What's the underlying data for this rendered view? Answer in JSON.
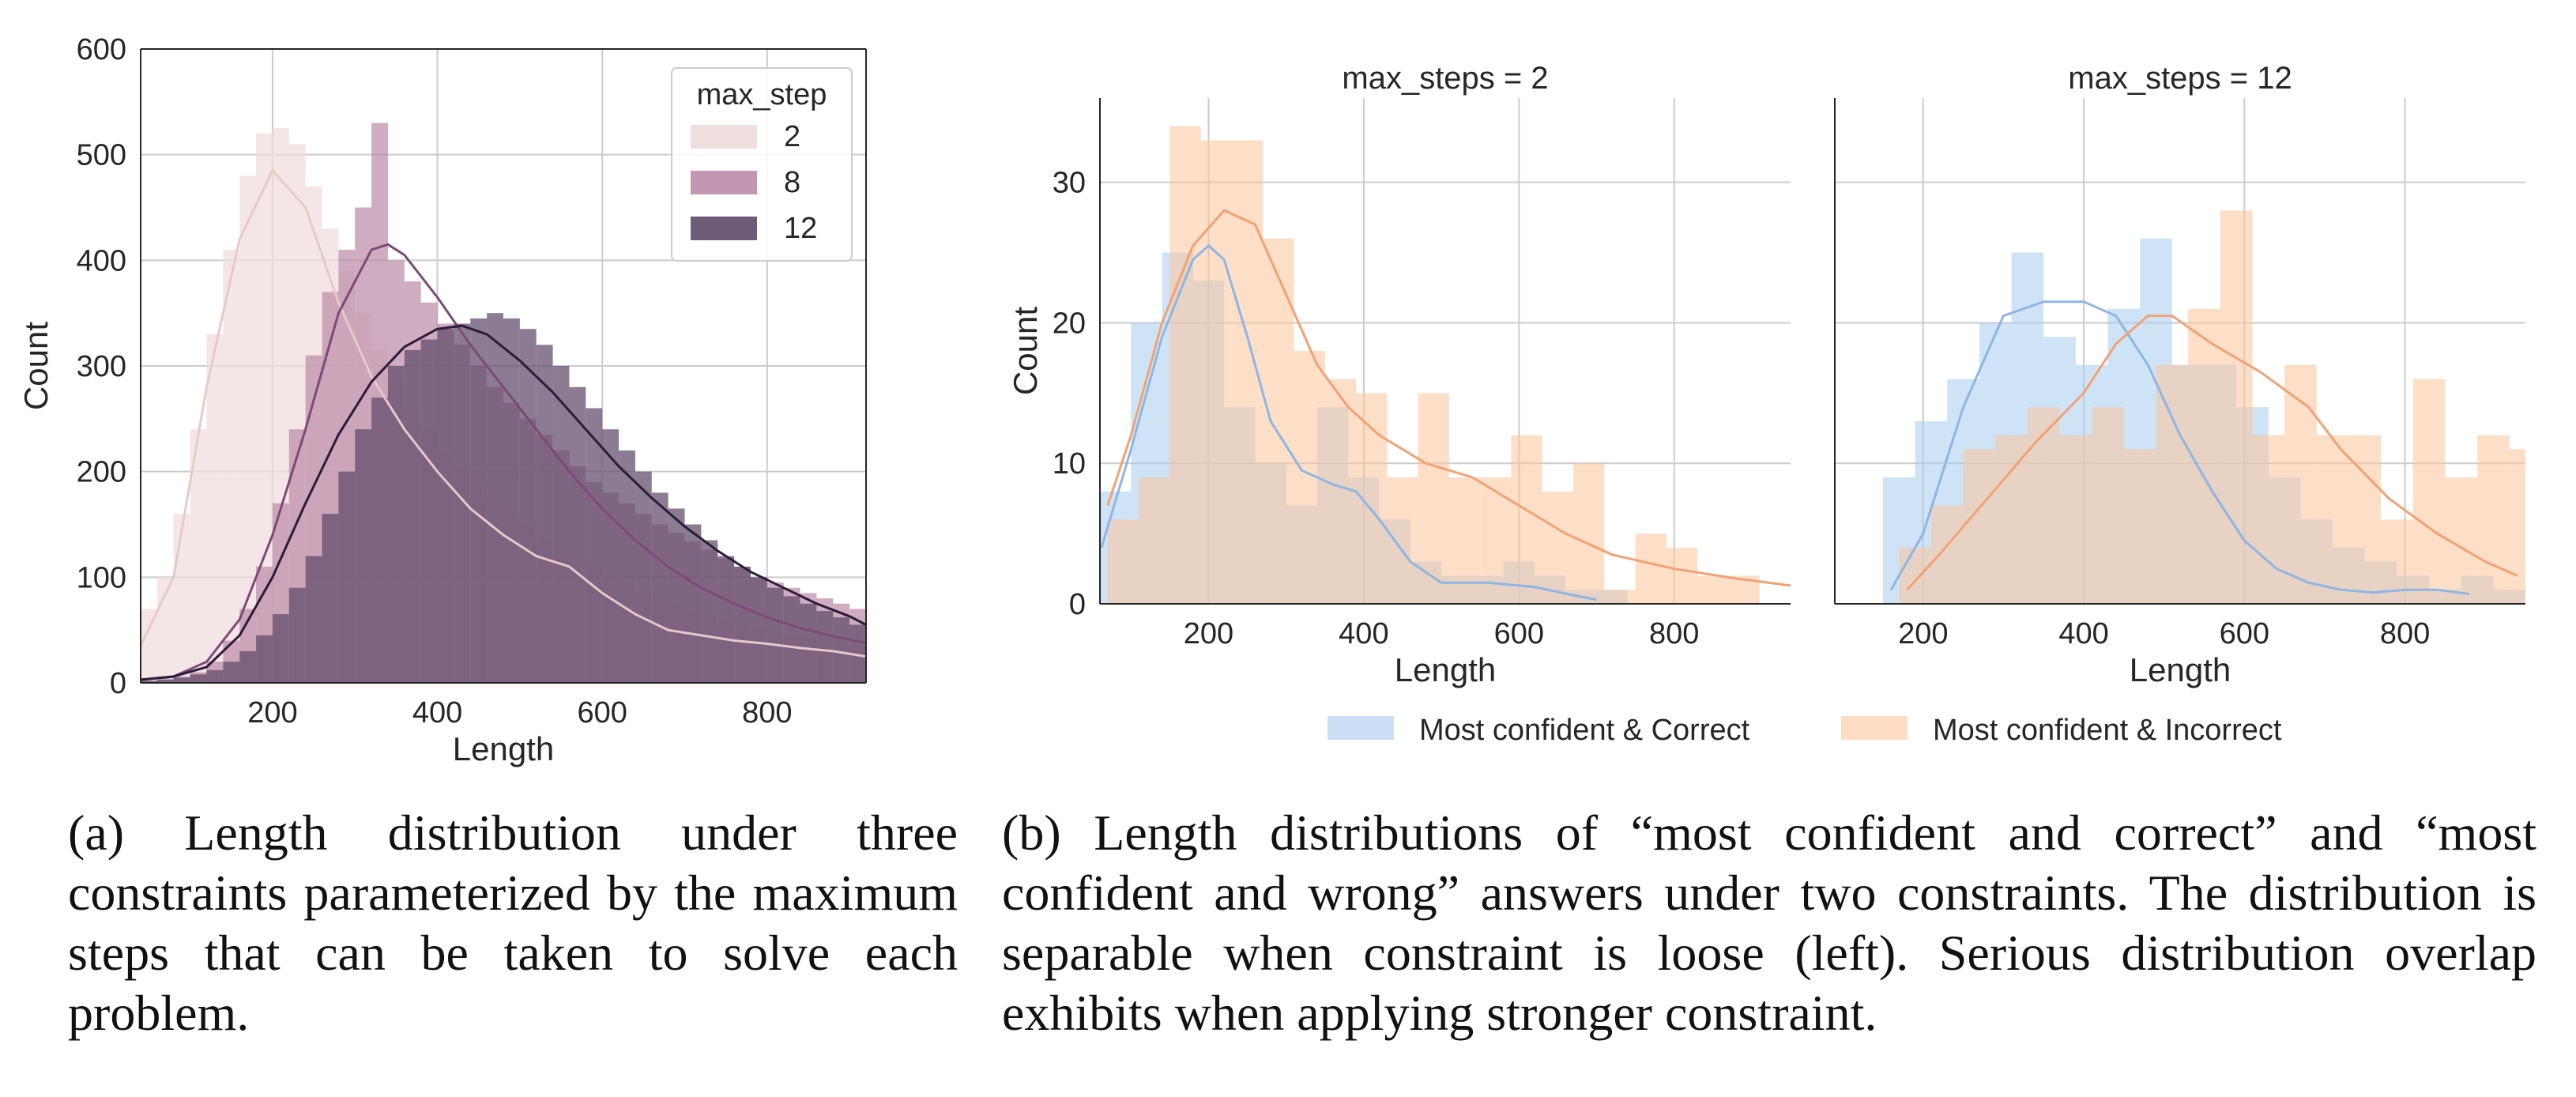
{
  "captions": {
    "a": "(a) Length distribution under three constraints parameterized by the maximum steps that can be taken to solve each problem.",
    "b": "(b) Length distributions of “most confident and correct” and “most confident and wrong” answers under two constraints. The distribution is separable when constraint is loose (left). Serious distribution overlap exhibits when applying stronger constraint."
  },
  "colors": {
    "grid": "#cccccc",
    "axis": "#262626",
    "step2": "#f0dcdc",
    "step8": "#bc8ca8",
    "step12": "#5e4a6a",
    "step2_line": "#e6c9c9",
    "step8_line": "#7d4a76",
    "step12_line": "#2b1c3a",
    "correct": "#a8ccf0",
    "incorrect": "#fcc49a",
    "correct_line": "#8db6e4",
    "incorrect_line": "#f2a272"
  },
  "chart_data": [
    {
      "type": "histogram",
      "xlabel": "Length",
      "ylabel": "Count",
      "xlim": [
        40,
        920
      ],
      "ylim": [
        0,
        600
      ],
      "xticks": [
        200,
        400,
        600,
        800
      ],
      "yticks": [
        0,
        100,
        200,
        300,
        400,
        500,
        600
      ],
      "grid": true,
      "legend": {
        "title": "max_step",
        "position": "top-right"
      },
      "bin_width": 20,
      "bin_start": 40,
      "series": [
        {
          "name": "2",
          "color_key": "step2",
          "line_key": "step2_line",
          "counts": [
            70,
            100,
            160,
            240,
            330,
            410,
            480,
            520,
            525,
            510,
            470,
            430,
            390,
            350,
            315,
            285,
            260,
            240,
            220,
            205,
            190,
            175,
            160,
            148,
            136,
            125,
            116,
            108,
            100,
            93,
            86,
            80,
            74,
            69,
            64,
            60,
            56,
            52,
            48,
            45,
            42,
            39,
            36,
            34
          ],
          "kde": [
            [
              40,
              35
            ],
            [
              80,
              100
            ],
            [
              120,
              280
            ],
            [
              160,
              420
            ],
            [
              200,
              485
            ],
            [
              240,
              450
            ],
            [
              280,
              360
            ],
            [
              320,
              290
            ],
            [
              360,
              240
            ],
            [
              400,
              200
            ],
            [
              440,
              165
            ],
            [
              480,
              140
            ],
            [
              520,
              120
            ],
            [
              560,
              110
            ],
            [
              600,
              85
            ],
            [
              640,
              65
            ],
            [
              680,
              50
            ],
            [
              720,
              45
            ],
            [
              760,
              40
            ],
            [
              800,
              37
            ],
            [
              840,
              33
            ],
            [
              880,
              30
            ],
            [
              920,
              25
            ]
          ]
        },
        {
          "name": "8",
          "color_key": "step8",
          "line_key": "step8_line",
          "counts": [
            2,
            4,
            6,
            10,
            20,
            40,
            70,
            110,
            170,
            240,
            310,
            370,
            410,
            450,
            530,
            400,
            380,
            360,
            340,
            320,
            300,
            280,
            265,
            250,
            235,
            220,
            205,
            190,
            180,
            170,
            160,
            150,
            142,
            134,
            126,
            118,
            110,
            100,
            95,
            90,
            85,
            80,
            75,
            70
          ],
          "kde": [
            [
              40,
              3
            ],
            [
              80,
              6
            ],
            [
              120,
              20
            ],
            [
              160,
              60
            ],
            [
              200,
              140
            ],
            [
              240,
              240
            ],
            [
              280,
              350
            ],
            [
              320,
              410
            ],
            [
              340,
              415
            ],
            [
              360,
              405
            ],
            [
              400,
              365
            ],
            [
              440,
              320
            ],
            [
              480,
              280
            ],
            [
              520,
              240
            ],
            [
              560,
              200
            ],
            [
              600,
              165
            ],
            [
              640,
              135
            ],
            [
              680,
              110
            ],
            [
              720,
              90
            ],
            [
              760,
              75
            ],
            [
              800,
              62
            ],
            [
              840,
              52
            ],
            [
              880,
              44
            ],
            [
              920,
              38
            ]
          ]
        },
        {
          "name": "12",
          "color_key": "step12",
          "line_key": "step12_line",
          "counts": [
            2,
            3,
            5,
            8,
            12,
            20,
            30,
            45,
            65,
            90,
            120,
            160,
            200,
            240,
            270,
            300,
            315,
            325,
            335,
            340,
            345,
            350,
            345,
            335,
            320,
            300,
            280,
            260,
            240,
            220,
            200,
            180,
            165,
            150,
            135,
            120,
            110,
            100,
            90,
            82,
            75,
            68,
            62,
            55
          ],
          "kde": [
            [
              40,
              3
            ],
            [
              80,
              6
            ],
            [
              120,
              15
            ],
            [
              160,
              45
            ],
            [
              200,
              100
            ],
            [
              240,
              170
            ],
            [
              280,
              235
            ],
            [
              320,
              285
            ],
            [
              360,
              318
            ],
            [
              400,
              335
            ],
            [
              430,
              338
            ],
            [
              460,
              330
            ],
            [
              500,
              305
            ],
            [
              540,
              275
            ],
            [
              580,
              240
            ],
            [
              620,
              205
            ],
            [
              660,
              175
            ],
            [
              700,
              148
            ],
            [
              740,
              125
            ],
            [
              780,
              105
            ],
            [
              820,
              90
            ],
            [
              860,
              75
            ],
            [
              900,
              63
            ],
            [
              920,
              55
            ]
          ]
        }
      ]
    },
    {
      "type": "histogram",
      "title": "max_steps = 2",
      "xlabel": "Length",
      "ylabel": "Count",
      "xlim": [
        60,
        950
      ],
      "ylim": [
        0,
        36
      ],
      "xticks": [
        200,
        400,
        600,
        800
      ],
      "yticks": [
        0,
        10,
        20,
        30
      ],
      "grid": true,
      "bin_width": 40,
      "series": [
        {
          "name": "Most confident & Correct",
          "color_key": "correct",
          "line_key": "correct_line",
          "bin_start": 60,
          "counts": [
            8,
            20,
            25,
            23,
            14,
            10,
            7,
            14,
            9,
            6,
            3,
            2,
            2,
            3,
            2,
            1,
            1,
            0,
            0,
            0
          ],
          "kde": [
            [
              62,
              4
            ],
            [
              100,
              11
            ],
            [
              140,
              19
            ],
            [
              180,
              24.5
            ],
            [
              200,
              25.5
            ],
            [
              220,
              24.5
            ],
            [
              250,
              19
            ],
            [
              280,
              13
            ],
            [
              320,
              9.5
            ],
            [
              360,
              8.5
            ],
            [
              390,
              8
            ],
            [
              420,
              6
            ],
            [
              460,
              3
            ],
            [
              500,
              1.5
            ],
            [
              560,
              1.5
            ],
            [
              620,
              1.2
            ],
            [
              680,
              0.5
            ],
            [
              700,
              0.3
            ]
          ]
        },
        {
          "name": "Most confident & Incorrect",
          "color_key": "incorrect",
          "line_key": "incorrect_line",
          "bin_start": 70,
          "counts": [
            6,
            9,
            34,
            33,
            33,
            26,
            18,
            16,
            15,
            9,
            15,
            9,
            9,
            12,
            8,
            10,
            1,
            5,
            4,
            2,
            2
          ],
          "kde": [
            [
              70,
              7
            ],
            [
              100,
              12
            ],
            [
              140,
              20
            ],
            [
              180,
              25.5
            ],
            [
              220,
              28
            ],
            [
              260,
              27
            ],
            [
              300,
              22
            ],
            [
              340,
              17
            ],
            [
              380,
              14
            ],
            [
              420,
              12
            ],
            [
              480,
              10
            ],
            [
              540,
              9
            ],
            [
              600,
              7
            ],
            [
              660,
              5
            ],
            [
              720,
              3.5
            ],
            [
              800,
              2.5
            ],
            [
              880,
              1.8
            ],
            [
              950,
              1.3
            ]
          ]
        }
      ]
    },
    {
      "type": "histogram",
      "title": "max_steps = 12",
      "xlabel": "Length",
      "xlim": [
        90,
        950
      ],
      "ylim": [
        0,
        36
      ],
      "xticks": [
        200,
        400,
        600,
        800
      ],
      "yticks": [
        0,
        10,
        20,
        30
      ],
      "grid": true,
      "bin_width": 40,
      "series": [
        {
          "name": "Most confident & Correct",
          "color_key": "correct",
          "line_key": "correct_line",
          "bin_start": 150,
          "counts": [
            9,
            13,
            16,
            20,
            25,
            19,
            17,
            21,
            26,
            17,
            17,
            14,
            9,
            6,
            4,
            3,
            2,
            1,
            2,
            1
          ],
          "kde": [
            [
              160,
              1
            ],
            [
              200,
              5
            ],
            [
              250,
              14
            ],
            [
              300,
              20.5
            ],
            [
              350,
              21.5
            ],
            [
              400,
              21.5
            ],
            [
              440,
              20.5
            ],
            [
              480,
              17
            ],
            [
              520,
              12
            ],
            [
              560,
              8
            ],
            [
              600,
              4.5
            ],
            [
              640,
              2.5
            ],
            [
              680,
              1.5
            ],
            [
              720,
              1
            ],
            [
              760,
              0.8
            ],
            [
              800,
              1
            ],
            [
              840,
              1
            ],
            [
              880,
              0.7
            ]
          ]
        },
        {
          "name": "Most confident & Incorrect",
          "color_key": "incorrect",
          "line_key": "incorrect_line",
          "bin_start": 170,
          "counts": [
            4,
            7,
            11,
            12,
            14,
            12,
            14,
            11,
            17,
            21,
            28,
            12,
            17,
            12,
            12,
            6,
            16,
            9,
            12,
            11,
            6,
            11,
            2,
            1
          ],
          "kde": [
            [
              180,
              1
            ],
            [
              220,
              3.5
            ],
            [
              280,
              7.5
            ],
            [
              340,
              11.5
            ],
            [
              400,
              15
            ],
            [
              440,
              18.5
            ],
            [
              480,
              20.5
            ],
            [
              510,
              20.5
            ],
            [
              560,
              18.5
            ],
            [
              620,
              16.5
            ],
            [
              680,
              14
            ],
            [
              720,
              11
            ],
            [
              780,
              7.5
            ],
            [
              840,
              5
            ],
            [
              900,
              3
            ],
            [
              940,
              2
            ]
          ]
        }
      ]
    }
  ]
}
